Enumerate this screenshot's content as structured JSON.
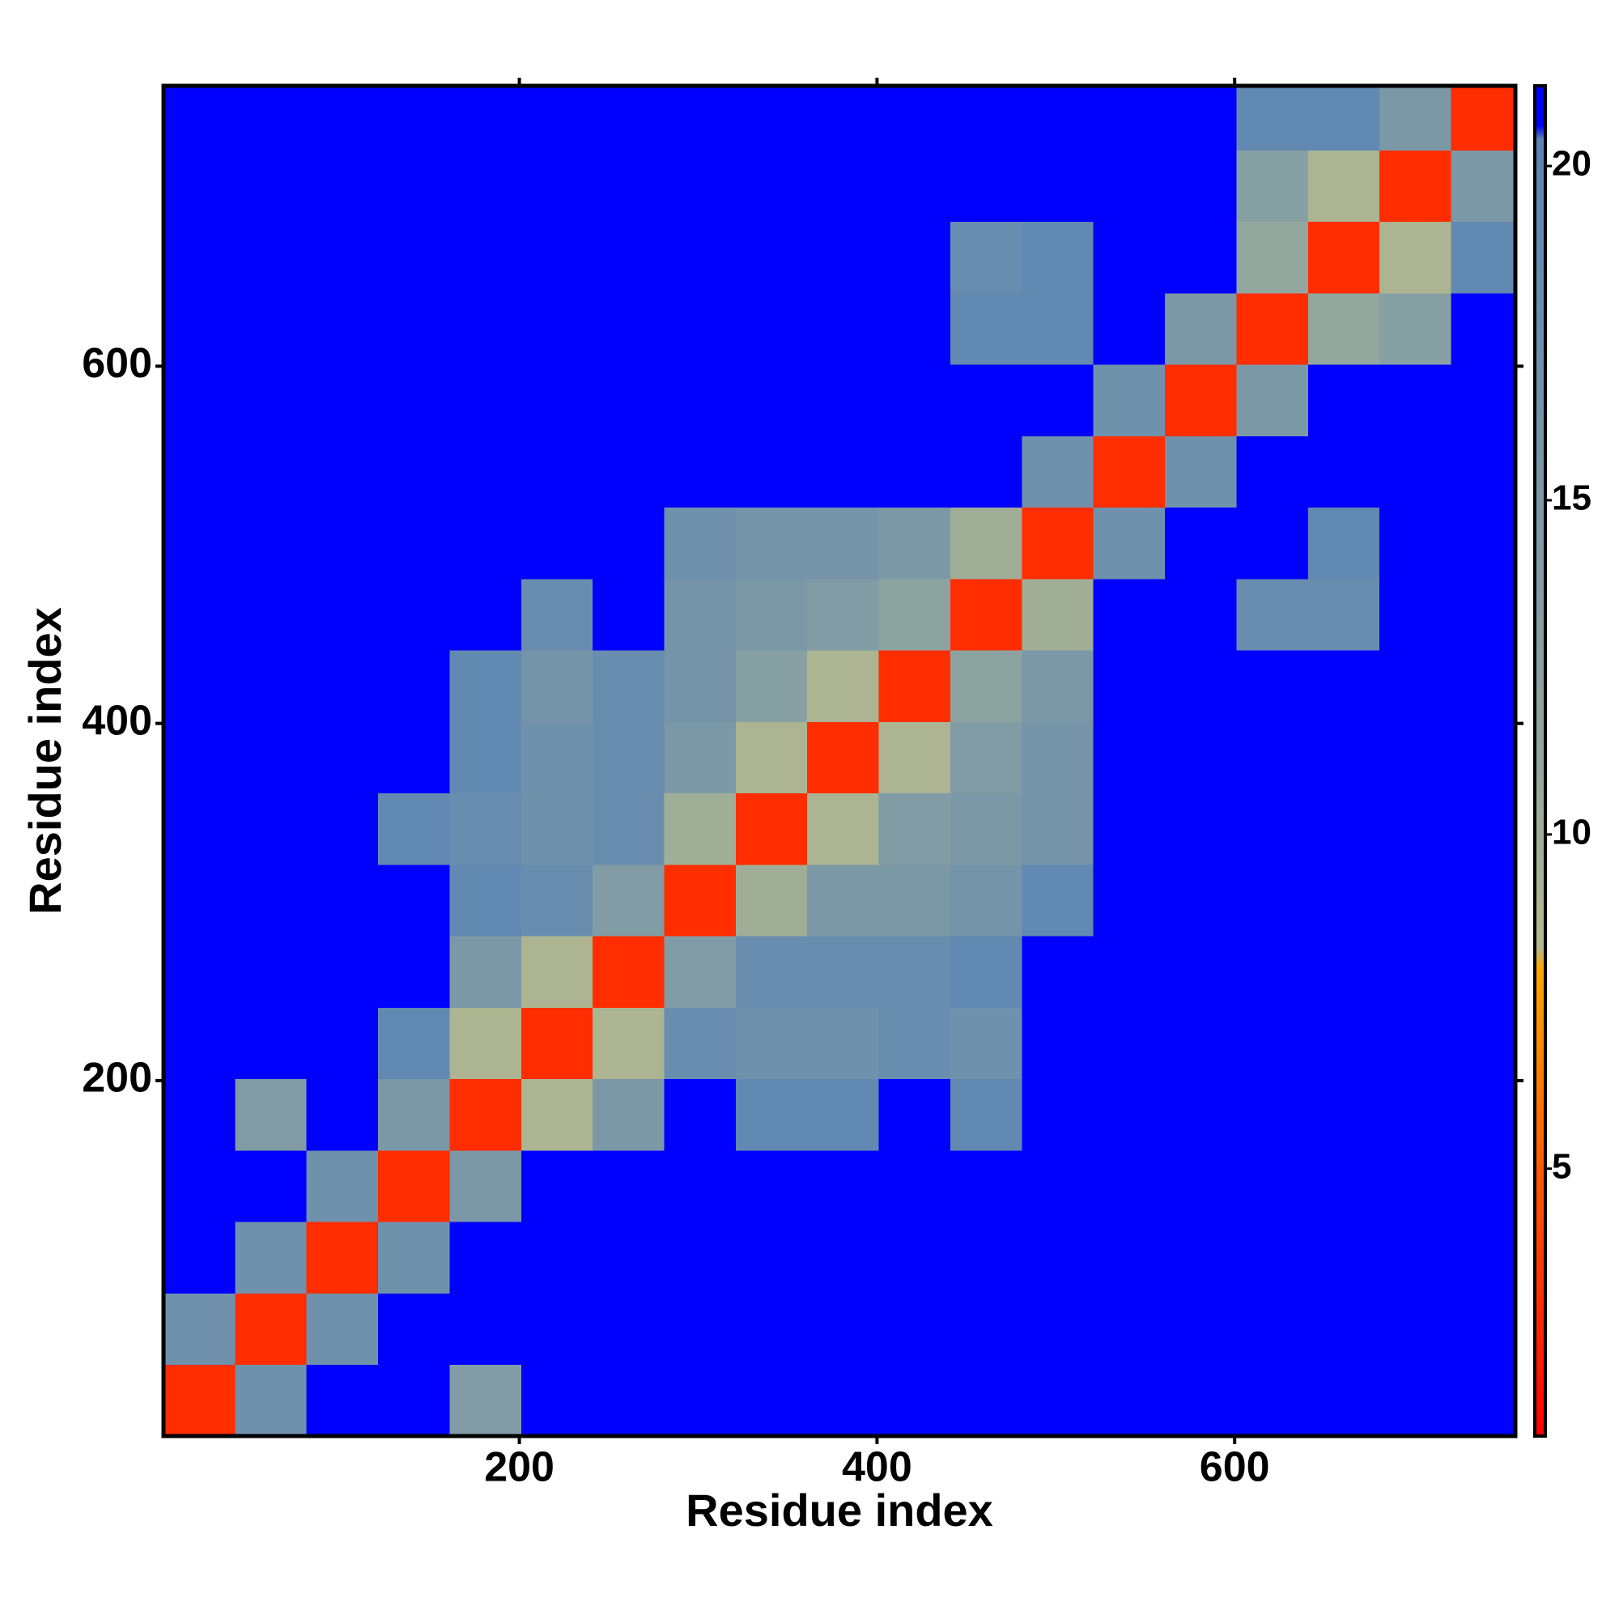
{
  "chart_data": {
    "type": "heatmap",
    "x_label": "Residue index",
    "y_label": "Residue index",
    "xlim": [
      1,
      757
    ],
    "ylim": [
      1,
      757
    ],
    "xticks": [
      200,
      400,
      600
    ],
    "yticks": [
      200,
      400,
      600
    ],
    "bins": [
      1,
      41,
      81,
      121,
      161,
      201,
      241,
      281,
      321,
      361,
      401,
      441,
      481,
      521,
      561,
      601,
      641,
      681,
      721,
      761
    ],
    "z": [
      [
        3,
        17,
        21,
        21,
        14,
        21,
        21,
        21,
        21,
        21,
        21,
        21,
        21,
        21,
        21,
        21,
        21,
        21,
        21
      ],
      [
        17,
        3,
        17,
        21,
        21,
        21,
        21,
        21,
        21,
        21,
        21,
        21,
        21,
        21,
        21,
        21,
        21,
        21,
        21
      ],
      [
        21,
        17,
        3,
        17,
        21,
        21,
        21,
        21,
        21,
        21,
        21,
        21,
        21,
        21,
        21,
        21,
        21,
        21,
        21
      ],
      [
        21,
        21,
        17,
        3,
        15,
        21,
        21,
        21,
        21,
        21,
        21,
        21,
        21,
        21,
        21,
        21,
        21,
        21,
        21
      ],
      [
        21,
        14,
        21,
        15,
        3,
        9,
        15,
        21,
        19,
        19,
        21,
        19,
        21,
        21,
        21,
        21,
        21,
        21,
        21
      ],
      [
        21,
        21,
        21,
        19,
        9,
        3,
        9,
        18,
        17,
        17,
        18,
        17,
        21,
        21,
        21,
        21,
        21,
        21,
        21
      ],
      [
        21,
        21,
        21,
        21,
        15,
        9,
        3,
        14,
        18,
        18,
        18,
        19,
        21,
        21,
        21,
        21,
        21,
        21,
        21
      ],
      [
        21,
        21,
        21,
        21,
        19,
        18,
        14,
        3,
        10,
        15,
        15,
        16,
        19,
        21,
        21,
        21,
        21,
        21,
        21
      ],
      [
        21,
        21,
        21,
        19,
        18,
        17,
        18,
        10,
        3,
        9,
        14,
        15,
        16,
        21,
        21,
        21,
        21,
        21,
        21
      ],
      [
        21,
        21,
        21,
        21,
        19,
        17,
        18,
        15,
        9,
        3,
        9,
        14,
        16,
        21,
        21,
        21,
        21,
        21,
        21
      ],
      [
        21,
        21,
        21,
        21,
        19,
        16,
        18,
        16,
        13,
        9,
        3,
        12,
        15,
        21,
        21,
        21,
        21,
        21,
        21
      ],
      [
        21,
        21,
        21,
        21,
        21,
        18,
        21,
        16,
        15,
        14,
        12,
        3,
        10,
        21,
        21,
        18,
        18,
        21,
        21
      ],
      [
        21,
        21,
        21,
        21,
        21,
        21,
        21,
        17,
        16,
        16,
        15,
        10,
        3,
        17,
        21,
        21,
        19,
        21,
        21
      ],
      [
        21,
        21,
        21,
        21,
        21,
        21,
        21,
        21,
        21,
        21,
        21,
        21,
        17,
        3,
        17,
        21,
        21,
        21,
        21
      ],
      [
        21,
        21,
        21,
        21,
        21,
        21,
        21,
        21,
        21,
        21,
        21,
        21,
        21,
        17,
        3,
        15,
        21,
        21,
        21
      ],
      [
        21,
        21,
        21,
        21,
        21,
        21,
        21,
        21,
        21,
        21,
        21,
        19,
        19,
        21,
        15,
        3,
        11,
        13,
        21
      ],
      [
        21,
        21,
        21,
        21,
        21,
        21,
        21,
        21,
        21,
        21,
        21,
        18,
        19,
        21,
        21,
        11,
        3,
        9,
        19
      ],
      [
        21,
        21,
        21,
        21,
        21,
        21,
        21,
        21,
        21,
        21,
        21,
        21,
        21,
        21,
        21,
        13,
        9,
        3,
        15
      ],
      [
        21,
        21,
        21,
        21,
        21,
        21,
        21,
        21,
        21,
        21,
        21,
        21,
        21,
        21,
        21,
        19,
        19,
        15,
        3
      ]
    ],
    "clim": [
      1,
      21.2
    ],
    "cticks": [
      5,
      10,
      15,
      20
    ],
    "colorscale": [
      [
        1,
        "#ff0000"
      ],
      [
        5,
        "#ff5a00"
      ],
      [
        8,
        "#ffa500"
      ],
      [
        8.3,
        "#b5b98d"
      ],
      [
        11,
        "#93a79e"
      ],
      [
        20.4,
        "#5a84b4"
      ],
      [
        20.6,
        "#0000ff"
      ],
      [
        21.2,
        "#0000ff"
      ]
    ]
  }
}
